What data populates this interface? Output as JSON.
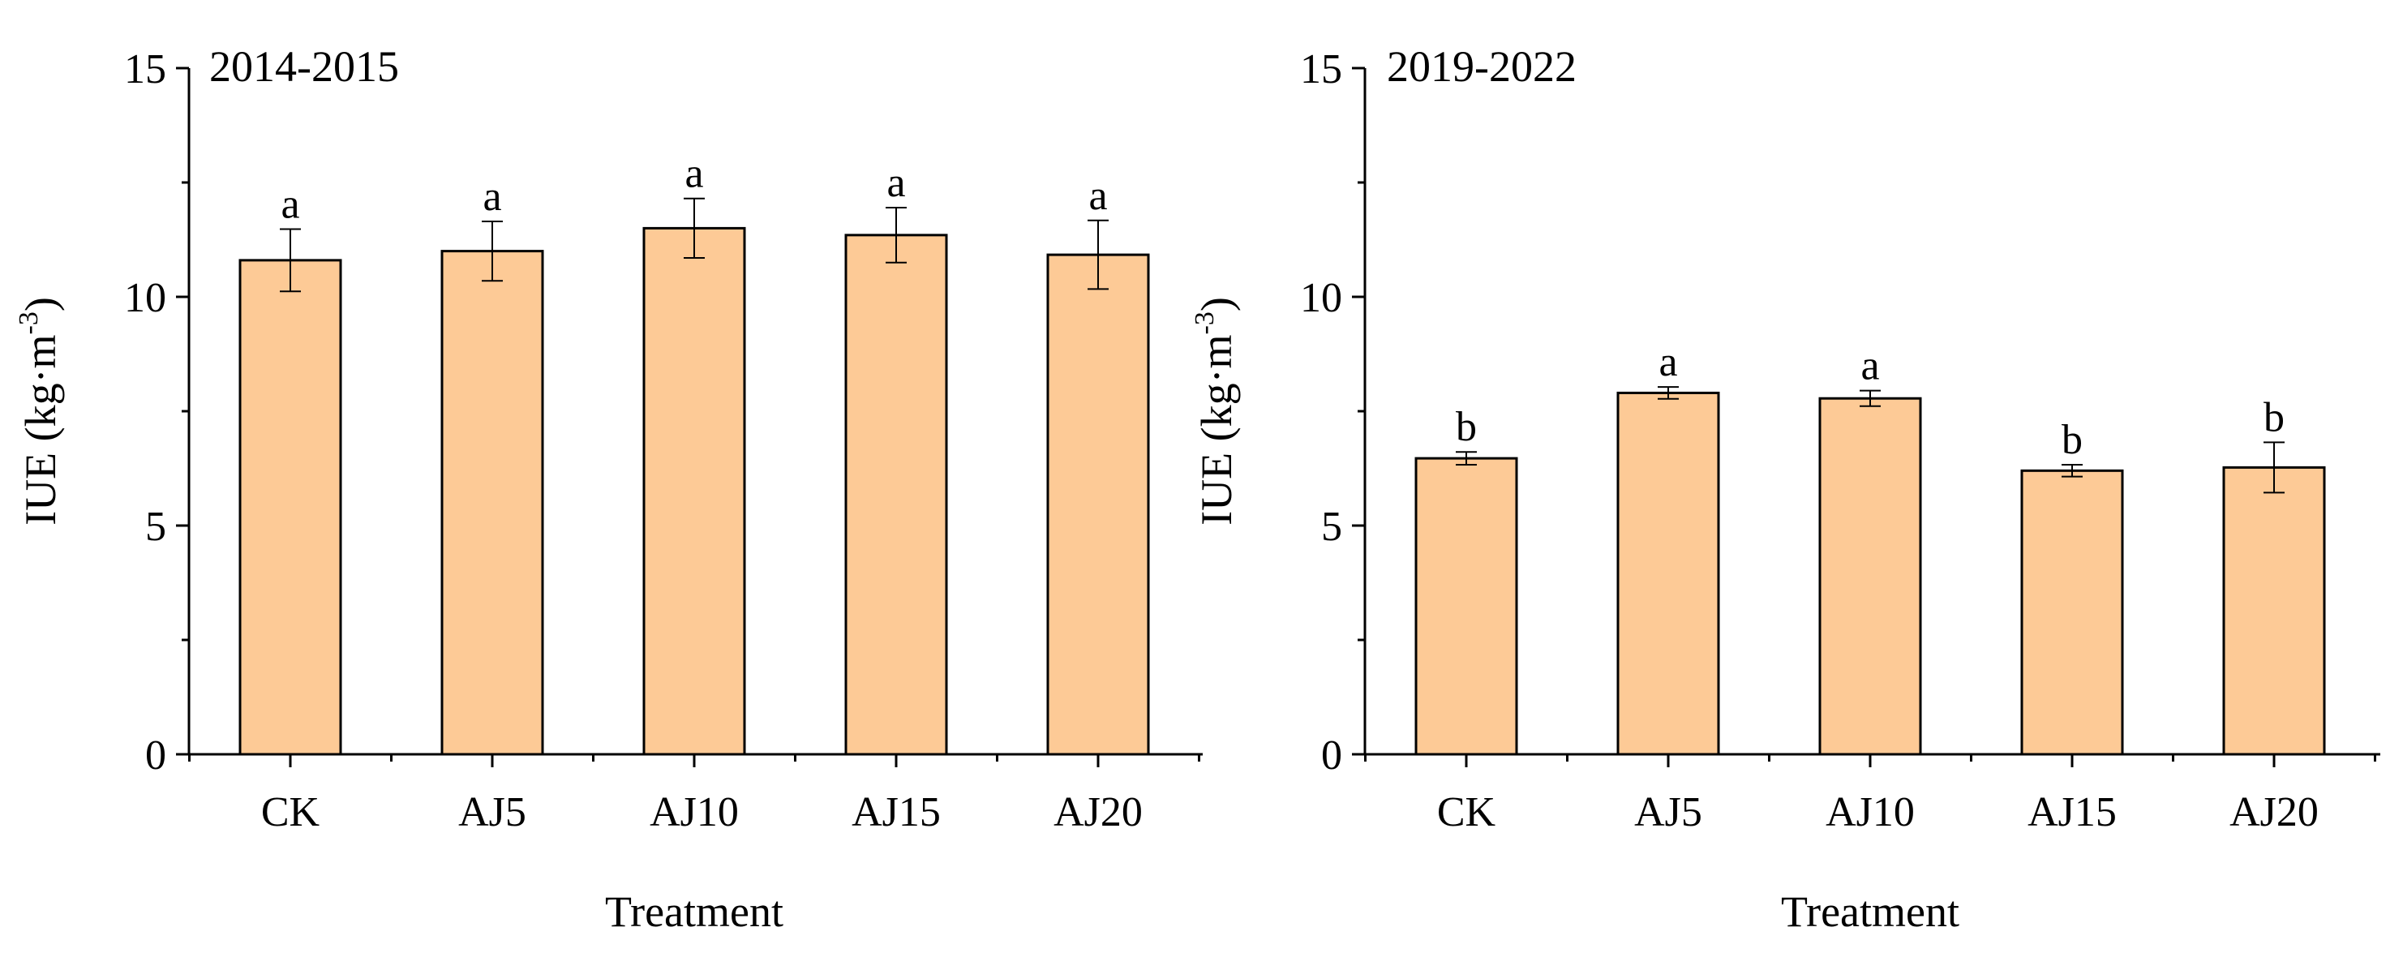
{
  "chart_data": [
    {
      "type": "bar",
      "title": "2014-2015",
      "xlabel": "Treatment",
      "ylabel": "IUE (kg·m",
      "ylabel_sup": "-3",
      "ylabel_close": ")",
      "ylim": [
        0,
        15
      ],
      "yticks": [
        0,
        5,
        10,
        15
      ],
      "categories": [
        "CK",
        "AJ5",
        "AJ10",
        "AJ15",
        "AJ20"
      ],
      "values": [
        10.8,
        11.0,
        11.5,
        11.35,
        10.92
      ],
      "errors": [
        0.68,
        0.65,
        0.65,
        0.6,
        0.75
      ],
      "significance": [
        "a",
        "a",
        "a",
        "a",
        "a"
      ],
      "bar_color": "#fdca96"
    },
    {
      "type": "bar",
      "title": "2019-2022",
      "xlabel": "Treatment",
      "ylabel": "IUE (kg·m",
      "ylabel_sup": "-3",
      "ylabel_close": ")",
      "ylim": [
        0,
        15
      ],
      "yticks": [
        0,
        5,
        10,
        15
      ],
      "categories": [
        "CK",
        "AJ5",
        "AJ10",
        "AJ15",
        "AJ20"
      ],
      "values": [
        6.47,
        7.9,
        7.78,
        6.2,
        6.27
      ],
      "errors": [
        0.14,
        0.13,
        0.17,
        0.13,
        0.55
      ],
      "significance": [
        "b",
        "a",
        "a",
        "b",
        "b"
      ],
      "bar_color": "#fdca96"
    }
  ]
}
